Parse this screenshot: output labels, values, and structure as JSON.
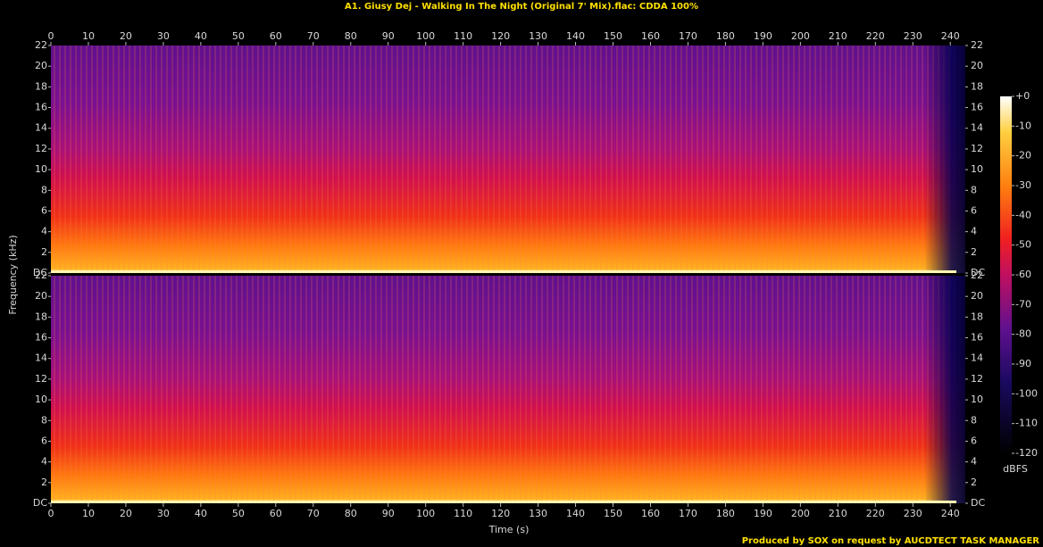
{
  "title": "A1. Giusy Dej - Walking In The Night (Original 7' Mix).flac: CDDA 100%",
  "x_axis": {
    "label": "Time (s)",
    "lim": [
      0,
      244
    ],
    "ticks": [
      0,
      10,
      20,
      30,
      40,
      50,
      60,
      70,
      80,
      90,
      100,
      110,
      120,
      130,
      140,
      150,
      160,
      170,
      180,
      190,
      200,
      210,
      220,
      230,
      240
    ]
  },
  "y_axis": {
    "label": "Frequency (kHz)",
    "lim": [
      0,
      22
    ],
    "ticks": [
      {
        "value": 0,
        "label": "DC"
      },
      2,
      4,
      6,
      8,
      10,
      12,
      14,
      16,
      18,
      20,
      22
    ]
  },
  "colorbar": {
    "label": "dBFS",
    "lim": [
      -120,
      0
    ],
    "ticks": [
      {
        "value": 0,
        "label": "+0"
      },
      -10,
      -20,
      -30,
      -40,
      -50,
      -60,
      -70,
      -80,
      -90,
      -100,
      -110,
      -120
    ]
  },
  "footer": "Produced by SOX on request by AUCDTECT TASK MANAGER"
}
